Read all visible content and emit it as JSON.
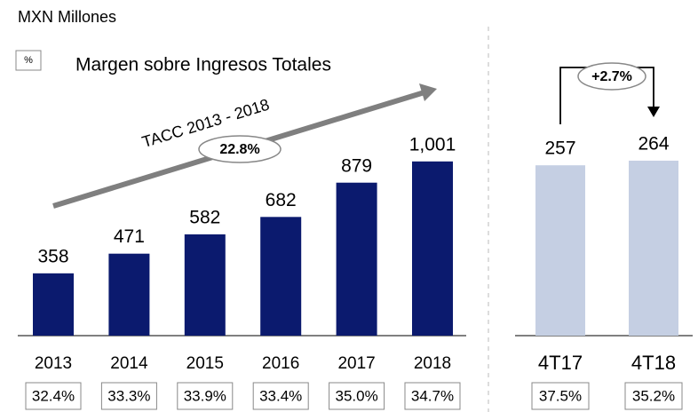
{
  "chart_data": [
    {
      "type": "bar",
      "unit": "MXN Millones",
      "legend_box": "%",
      "legend_label": "Margen sobre Ingresos Totales",
      "annotation": "TACC 2013 - 2018",
      "cagr": "22.8%",
      "categories": [
        "2013",
        "2014",
        "2015",
        "2016",
        "2017",
        "2018"
      ],
      "values": [
        358,
        471,
        582,
        682,
        879,
        1001
      ],
      "value_labels": [
        "358",
        "471",
        "582",
        "682",
        "879",
        "1,001"
      ],
      "margins": [
        "32.4%",
        "33.3%",
        "33.9%",
        "33.4%",
        "35.0%",
        "34.7%"
      ],
      "color": "#0b1a6e",
      "ylim": [
        0,
        1100
      ]
    },
    {
      "type": "bar",
      "annotation": "+2.7%",
      "categories": [
        "4T17",
        "4T18"
      ],
      "values": [
        257,
        264
      ],
      "margins": [
        "37.5%",
        "35.2%"
      ],
      "color": "#c5cfe3",
      "ylim": [
        0,
        280
      ]
    }
  ]
}
